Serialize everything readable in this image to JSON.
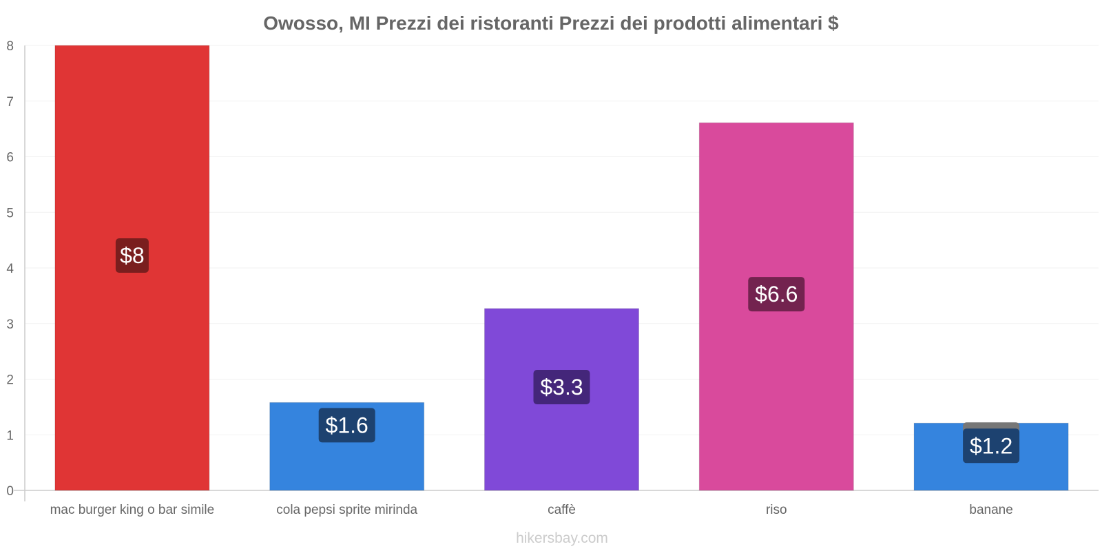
{
  "chart_data": {
    "type": "bar",
    "title": "Owosso, MI Prezzi dei ristoranti Prezzi dei prodotti alimentari $",
    "categories": [
      "mac burger king o bar simile",
      "cola pepsi sprite mirinda",
      "caffè",
      "riso",
      "banane"
    ],
    "values": [
      8,
      1.58,
      3.27,
      6.61,
      1.21
    ],
    "value_labels": [
      "$8",
      "$1.6",
      "$3.3",
      "$6.6",
      "$1.2"
    ],
    "bar_colors": [
      "#e03535",
      "#3584de",
      "#8049d8",
      "#d94a9c",
      "#3584de"
    ],
    "label_box_colors": [
      "#7a1e1e",
      "#1d4270",
      "#44267a",
      "#73234f",
      "#1d4270"
    ],
    "ylim": [
      0,
      8
    ],
    "yticks": [
      0,
      1,
      2,
      3,
      4,
      5,
      6,
      7,
      8
    ],
    "xlabel": "",
    "ylabel": "",
    "grid": true
  },
  "footer": "hikersbay.com"
}
